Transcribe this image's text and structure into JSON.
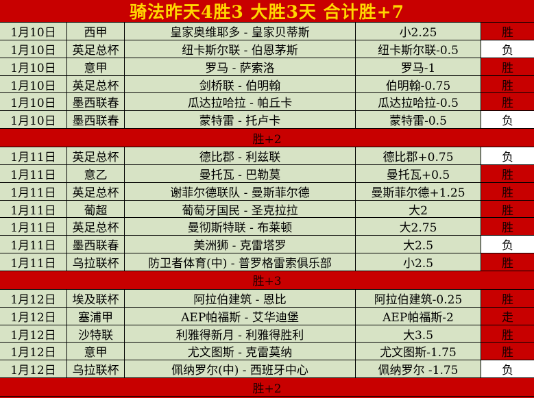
{
  "title": "骑法昨天4胜3  大胜3天  合计胜+7",
  "colors": {
    "red": "#c80000",
    "green": "#d7e3c5",
    "gold": "#ffd700",
    "win_cell_bg": "#c80000",
    "lose_cell_bg": "#ffffff",
    "border": "#000000"
  },
  "rows": [
    {
      "type": "match",
      "date": "1月10日",
      "league": "西甲",
      "match": "皇家奥维耶多 - 皇家贝蒂斯",
      "bet": "小2.25",
      "result": "胜",
      "outcome": "win"
    },
    {
      "type": "match",
      "date": "1月10日",
      "league": "英足总杯",
      "match": "纽卡斯尔联 - 伯恩茅斯",
      "bet": "纽卡斯尔联-0.5",
      "result": "负",
      "outcome": "lose"
    },
    {
      "type": "match",
      "date": "1月10日",
      "league": "意甲",
      "match": "罗马 - 萨索洛",
      "bet": "罗马-1",
      "result": "胜",
      "outcome": "win"
    },
    {
      "type": "match",
      "date": "1月10日",
      "league": "英足总杯",
      "match": "剑桥联 - 伯明翰",
      "bet": "伯明翰-0.75",
      "result": "胜",
      "outcome": "win"
    },
    {
      "type": "match",
      "date": "1月10日",
      "league": "墨西联春",
      "match": "瓜达拉哈拉 - 帕丘卡",
      "bet": "瓜达拉哈拉-0.5",
      "result": "胜",
      "outcome": "win"
    },
    {
      "type": "match",
      "date": "1月10日",
      "league": "墨西联春",
      "match": "蒙特雷 - 托卢卡",
      "bet": "蒙特雷-0.5",
      "result": "负",
      "outcome": "lose"
    },
    {
      "type": "summary",
      "label": "胜+2"
    },
    {
      "type": "match",
      "date": "1月11日",
      "league": "英足总杯",
      "match": "德比郡 - 利兹联",
      "bet": "德比郡+0.75",
      "result": "负",
      "outcome": "lose"
    },
    {
      "type": "match",
      "date": "1月11日",
      "league": "意乙",
      "match": "曼托瓦 - 巴勒莫",
      "bet": "曼托瓦+0.5",
      "result": "胜",
      "outcome": "win"
    },
    {
      "type": "match",
      "date": "1月11日",
      "league": "英足总杯",
      "match": "谢菲尔德联队 - 曼斯菲尔德",
      "bet": "曼斯菲尔德+1.25",
      "result": "胜",
      "outcome": "win"
    },
    {
      "type": "match",
      "date": "1月11日",
      "league": "葡超",
      "match": "葡萄牙国民 - 圣克拉拉",
      "bet": "大2",
      "result": "胜",
      "outcome": "win"
    },
    {
      "type": "match",
      "date": "1月11日",
      "league": "英足总杯",
      "match": "曼彻斯特联 - 布莱顿",
      "bet": "大2.75",
      "result": "胜",
      "outcome": "win"
    },
    {
      "type": "match",
      "date": "1月11日",
      "league": "墨西联春",
      "match": "美洲狮 - 克雷塔罗",
      "bet": "大2.5",
      "result": "负",
      "outcome": "lose"
    },
    {
      "type": "match",
      "date": "1月11日",
      "league": "乌拉联杯",
      "match": "防卫者体育(中) - 普罗格雷索俱乐部",
      "bet": "小2.5",
      "result": "胜",
      "outcome": "win"
    },
    {
      "type": "summary",
      "label": "胜+3"
    },
    {
      "type": "match",
      "date": "1月12日",
      "league": "埃及联杯",
      "match": "阿拉伯建筑 - 恩比",
      "bet": "阿拉伯建筑-0.25",
      "result": "胜",
      "outcome": "win"
    },
    {
      "type": "match",
      "date": "1月12日",
      "league": "塞浦甲",
      "match": "AEP帕福斯 - 艾华迪堡",
      "bet": "AEP帕福斯-2",
      "result": "走",
      "outcome": "push"
    },
    {
      "type": "match",
      "date": "1月12日",
      "league": "沙特联",
      "match": "利雅得新月 - 利雅得胜利",
      "bet": "大3.5",
      "result": "胜",
      "outcome": "win"
    },
    {
      "type": "match",
      "date": "1月12日",
      "league": "意甲",
      "match": "尤文图斯 - 克雷莫纳",
      "bet": "尤文图斯-1.75",
      "result": "胜",
      "outcome": "win"
    },
    {
      "type": "match",
      "date": "1月12日",
      "league": "乌拉联杯",
      "match": "佩纳罗尔(中) - 西班牙中心",
      "bet": "佩纳罗尔 -1.75",
      "result": "负",
      "outcome": "lose"
    },
    {
      "type": "summary",
      "label": "胜+2"
    }
  ]
}
